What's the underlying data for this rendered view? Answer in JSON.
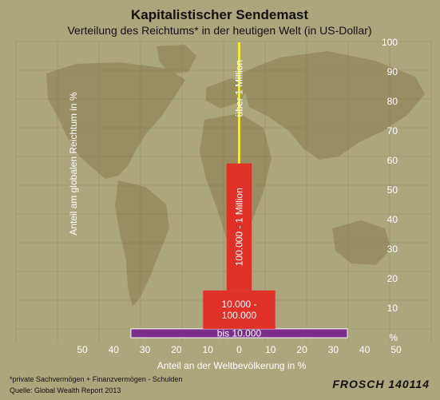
{
  "chart_data": {
    "type": "bar",
    "title": "Kapitalistischer Sendemast",
    "subtitle": "Verteilung des Reichtums* in der heutigen Welt (in US-Dollar)",
    "xlabel": "Anteil an der Weltbevölkerung in %",
    "ylabel": "Anteil am globalen Reichtum in %",
    "x_ticks": [
      "50",
      "40",
      "30",
      "20",
      "10",
      "0",
      "10",
      "20",
      "30",
      "40",
      "50"
    ],
    "y_ticks": [
      "%",
      "10",
      "20",
      "30",
      "40",
      "50",
      "60",
      "70",
      "80",
      "90",
      "100"
    ],
    "xlim": [
      -50,
      50
    ],
    "ylim": [
      0,
      100
    ],
    "categories": [
      "bis 10.000",
      "10.000 - 100.000",
      "100.000 - 1 Million",
      "über 1 Million"
    ],
    "labels": [
      [
        "bis 10.000"
      ],
      [
        "10.000 -",
        "100.000"
      ],
      [
        "100.000 - 1 Million"
      ],
      [
        "über 1 Million"
      ]
    ],
    "population_share": [
      69,
      23,
      8,
      0.7
    ],
    "wealth_share": [
      3,
      13,
      43,
      41
    ],
    "colors": [
      "#7b2d8a",
      "#e03128",
      "#e03128",
      "#f2e93c"
    ],
    "label_orientation": [
      "horizontal",
      "horizontal",
      "vertical",
      "vertical"
    ]
  },
  "footnote": "*private Sachvermögen + Finanzvermögen - Schulden",
  "source": "Quelle: Global Wealth Report 2013",
  "signature": "FROSCH 140114"
}
